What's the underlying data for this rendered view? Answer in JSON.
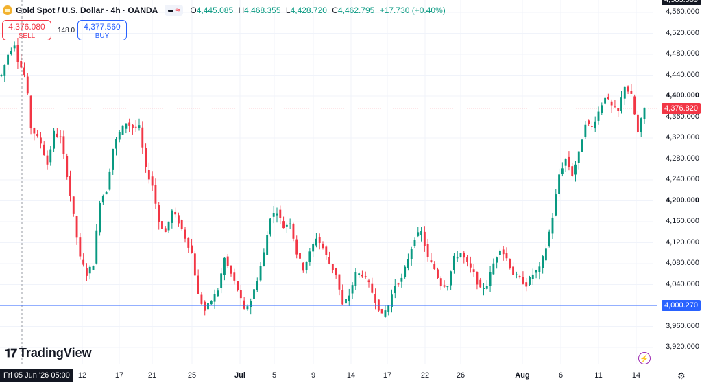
{
  "header": {
    "symbol_title": "Gold Spot / U.S. Dollar · 4h · OANDA",
    "symbol_icon": "gold-bar-icon",
    "chip_icon": "approx-wave-icon",
    "ohlc": {
      "open_key": "O",
      "open": "4,445.085",
      "high_key": "H",
      "high": "4,468.355",
      "low_key": "L",
      "low": "4,428.720",
      "close_key": "C",
      "close": "4,462.795",
      "change": "+17.730 (+0.40%)"
    }
  },
  "trade": {
    "sell_price": "4,376.080",
    "sell_label": "SELL",
    "spread": "148.0",
    "buy_price": "4,377.560",
    "buy_label": "BUY"
  },
  "price_axis": {
    "labels": [
      {
        "text": "4,560.000",
        "value": 4560,
        "bold": false
      },
      {
        "text": "4,520.000",
        "value": 4520,
        "bold": false
      },
      {
        "text": "4,480.000",
        "value": 4480,
        "bold": false
      },
      {
        "text": "4,440.000",
        "value": 4440,
        "bold": false
      },
      {
        "text": "4,400.000",
        "value": 4400,
        "bold": true
      },
      {
        "text": "4,360.000",
        "value": 4360,
        "bold": false
      },
      {
        "text": "4,320.000",
        "value": 4320,
        "bold": false
      },
      {
        "text": "4,280.000",
        "value": 4280,
        "bold": false
      },
      {
        "text": "4,240.000",
        "value": 4240,
        "bold": false
      },
      {
        "text": "4,200.000",
        "value": 4200,
        "bold": true
      },
      {
        "text": "4,160.000",
        "value": 4160,
        "bold": false
      },
      {
        "text": "4,120.000",
        "value": 4120,
        "bold": false
      },
      {
        "text": "4,080.000",
        "value": 4080,
        "bold": false
      },
      {
        "text": "4,040.000",
        "value": 4040,
        "bold": false
      },
      {
        "text": "3,960.000",
        "value": 3960,
        "bold": false
      },
      {
        "text": "3,920.000",
        "value": 3920,
        "bold": false
      }
    ],
    "current_price_tag": "4,376.820",
    "current_price": 4376.82,
    "hline_tag": "4,000.270",
    "hline_price": 4000.27,
    "top_tag": "4,583.589"
  },
  "time_axis": {
    "labels": [
      {
        "text": "12",
        "bold": false
      },
      {
        "text": "17",
        "bold": false
      },
      {
        "text": "21",
        "bold": false
      },
      {
        "text": "25",
        "bold": false
      },
      {
        "text": "Jul",
        "bold": true
      },
      {
        "text": "5",
        "bold": false
      },
      {
        "text": "9",
        "bold": false
      },
      {
        "text": "14",
        "bold": false
      },
      {
        "text": "17",
        "bold": false
      },
      {
        "text": "22",
        "bold": false
      },
      {
        "text": "26",
        "bold": false
      },
      {
        "text": "Aug",
        "bold": true
      },
      {
        "text": "6",
        "bold": false
      },
      {
        "text": "11",
        "bold": false
      },
      {
        "text": "14",
        "bold": false
      }
    ],
    "crosshair_date": "Fri 05 Jun '26  05:00"
  },
  "branding": {
    "logo_mark": "17",
    "logo_text": "TradingView"
  },
  "icons": {
    "flash": "lightning-icon",
    "settings": "gear-icon"
  },
  "colors": {
    "up": "#089981",
    "down": "#f23645",
    "hline": "#2962ff",
    "text": "#131722"
  },
  "chart_data": {
    "type": "candlestick",
    "title": "Gold Spot / U.S. Dollar · 4h · OANDA",
    "xlabel": "",
    "ylabel": "",
    "ylim": [
      3900,
      4583.589
    ],
    "x_tick_labels": [
      "12",
      "17",
      "21",
      "25",
      "Jul",
      "5",
      "9",
      "14",
      "17",
      "22",
      "26",
      "Aug",
      "6",
      "11",
      "14"
    ],
    "horizontal_line": 4000.27,
    "current_price": 4376.82,
    "anchors": [
      [
        0,
        4440
      ],
      [
        2,
        4480
      ],
      [
        4,
        4500
      ],
      [
        5,
        4470
      ],
      [
        7,
        4440
      ],
      [
        8,
        4400
      ],
      [
        9,
        4340
      ],
      [
        12,
        4310
      ],
      [
        14,
        4270
      ],
      [
        16,
        4330
      ],
      [
        18,
        4320
      ],
      [
        20,
        4250
      ],
      [
        22,
        4170
      ],
      [
        24,
        4090
      ],
      [
        26,
        4060
      ],
      [
        28,
        4080
      ],
      [
        30,
        4200
      ],
      [
        32,
        4220
      ],
      [
        34,
        4300
      ],
      [
        36,
        4330
      ],
      [
        38,
        4350
      ],
      [
        40,
        4340
      ],
      [
        42,
        4340
      ],
      [
        44,
        4260
      ],
      [
        46,
        4230
      ],
      [
        48,
        4160
      ],
      [
        50,
        4140
      ],
      [
        52,
        4180
      ],
      [
        54,
        4160
      ],
      [
        56,
        4130
      ],
      [
        58,
        4100
      ],
      [
        60,
        4020
      ],
      [
        62,
        3990
      ],
      [
        64,
        4010
      ],
      [
        66,
        4030
      ],
      [
        68,
        4090
      ],
      [
        70,
        4060
      ],
      [
        72,
        4030
      ],
      [
        74,
        3990
      ],
      [
        76,
        4010
      ],
      [
        78,
        4050
      ],
      [
        80,
        4100
      ],
      [
        82,
        4170
      ],
      [
        84,
        4180
      ],
      [
        86,
        4150
      ],
      [
        88,
        4160
      ],
      [
        90,
        4100
      ],
      [
        92,
        4070
      ],
      [
        94,
        4100
      ],
      [
        96,
        4130
      ],
      [
        98,
        4110
      ],
      [
        100,
        4080
      ],
      [
        102,
        4060
      ],
      [
        104,
        4000
      ],
      [
        106,
        4020
      ],
      [
        108,
        4060
      ],
      [
        110,
        4060
      ],
      [
        112,
        4040
      ],
      [
        114,
        4010
      ],
      [
        116,
        3980
      ],
      [
        118,
        4000
      ],
      [
        120,
        4040
      ],
      [
        122,
        4050
      ],
      [
        124,
        4090
      ],
      [
        126,
        4130
      ],
      [
        128,
        4140
      ],
      [
        130,
        4090
      ],
      [
        132,
        4070
      ],
      [
        134,
        4040
      ],
      [
        136,
        4040
      ],
      [
        138,
        4090
      ],
      [
        140,
        4100
      ],
      [
        142,
        4080
      ],
      [
        144,
        4060
      ],
      [
        146,
        4030
      ],
      [
        148,
        4040
      ],
      [
        150,
        4080
      ],
      [
        152,
        4110
      ],
      [
        154,
        4090
      ],
      [
        156,
        4060
      ],
      [
        158,
        4050
      ],
      [
        160,
        4040
      ],
      [
        162,
        4060
      ],
      [
        164,
        4070
      ],
      [
        166,
        4110
      ],
      [
        168,
        4170
      ],
      [
        170,
        4250
      ],
      [
        172,
        4280
      ],
      [
        174,
        4250
      ],
      [
        176,
        4290
      ],
      [
        178,
        4350
      ],
      [
        180,
        4340
      ],
      [
        182,
        4370
      ],
      [
        184,
        4400
      ],
      [
        186,
        4380
      ],
      [
        188,
        4370
      ],
      [
        190,
        4420
      ],
      [
        192,
        4400
      ],
      [
        194,
        4330
      ],
      [
        196,
        4376.82
      ]
    ]
  }
}
